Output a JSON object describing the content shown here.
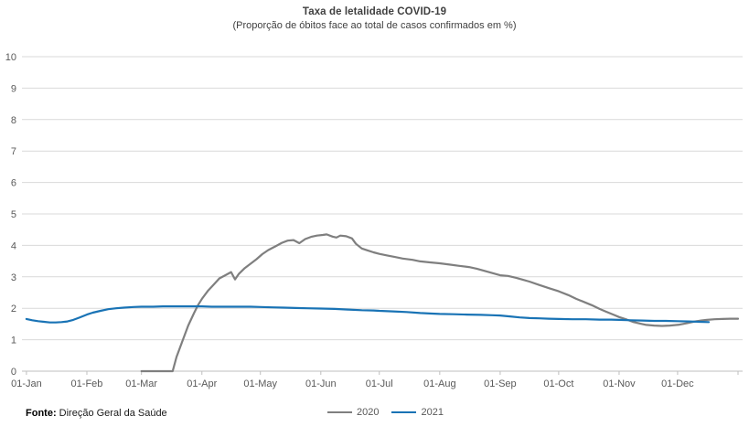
{
  "title": "Taxa de letalidade COVID-19",
  "subtitle": "(Proporção de óbitos face ao total de casos confirmados em %)",
  "source": {
    "label": "Fonte:",
    "text": " Direção Geral da Saúde"
  },
  "legend": {
    "items": [
      {
        "label": "2020"
      },
      {
        "label": "2021"
      }
    ]
  },
  "colors": {
    "series_2020": "#7f7f7f",
    "series_2021": "#1973b5",
    "gridline": "#d9d9d9",
    "axis": "#bfbfbf",
    "axis_text": "#595959",
    "title_text": "#404040"
  },
  "chart_data": {
    "type": "line",
    "title": "Taxa de letalidade COVID-19",
    "subtitle": "(Proporção de óbitos face ao total de casos confirmados em %)",
    "ylabel": "",
    "xlabel": "",
    "ylim": [
      0,
      10
    ],
    "y_ticks": [
      0,
      1,
      2,
      3,
      4,
      5,
      6,
      7,
      8,
      9,
      10
    ],
    "grid": true,
    "legend_position": "bottom-center",
    "x_unit": "day-of-year (0 = 01-Jan, 365 = 31-Dec)",
    "x_ticks": [
      {
        "label": "01-Jan",
        "day": 0
      },
      {
        "label": "01-Feb",
        "day": 31
      },
      {
        "label": "01-Mar",
        "day": 59
      },
      {
        "label": "01-Apr",
        "day": 90
      },
      {
        "label": "01-May",
        "day": 120
      },
      {
        "label": "01-Jun",
        "day": 151
      },
      {
        "label": "01-Jul",
        "day": 181
      },
      {
        "label": "01-Aug",
        "day": 212
      },
      {
        "label": "01-Sep",
        "day": 243
      },
      {
        "label": "01-Oct",
        "day": 273
      },
      {
        "label": "01-Nov",
        "day": 304
      },
      {
        "label": "01-Dec",
        "day": 334
      }
    ],
    "series": [
      {
        "name": "2020",
        "color": "#7f7f7f",
        "stroke_width": 2.2,
        "points": [
          [
            59,
            0
          ],
          [
            63,
            0
          ],
          [
            67,
            0
          ],
          [
            71,
            0
          ],
          [
            75,
            0
          ],
          [
            77,
            0.45
          ],
          [
            80,
            0.95
          ],
          [
            83,
            1.45
          ],
          [
            86,
            1.85
          ],
          [
            88,
            2.1
          ],
          [
            90,
            2.3
          ],
          [
            93,
            2.55
          ],
          [
            96,
            2.75
          ],
          [
            99,
            2.95
          ],
          [
            102,
            3.05
          ],
          [
            105,
            3.15
          ],
          [
            107,
            2.92
          ],
          [
            109,
            3.1
          ],
          [
            112,
            3.28
          ],
          [
            115,
            3.42
          ],
          [
            118,
            3.56
          ],
          [
            121,
            3.72
          ],
          [
            124,
            3.85
          ],
          [
            128,
            3.98
          ],
          [
            131,
            4.08
          ],
          [
            134,
            4.15
          ],
          [
            137,
            4.17
          ],
          [
            140,
            4.07
          ],
          [
            143,
            4.2
          ],
          [
            146,
            4.27
          ],
          [
            149,
            4.31
          ],
          [
            152,
            4.33
          ],
          [
            154,
            4.35
          ],
          [
            157,
            4.28
          ],
          [
            159,
            4.25
          ],
          [
            161,
            4.31
          ],
          [
            164,
            4.29
          ],
          [
            167,
            4.22
          ],
          [
            169,
            4.05
          ],
          [
            172,
            3.9
          ],
          [
            175,
            3.84
          ],
          [
            178,
            3.78
          ],
          [
            181,
            3.73
          ],
          [
            185,
            3.68
          ],
          [
            189,
            3.63
          ],
          [
            193,
            3.58
          ],
          [
            198,
            3.54
          ],
          [
            202,
            3.49
          ],
          [
            207,
            3.46
          ],
          [
            212,
            3.43
          ],
          [
            217,
            3.39
          ],
          [
            222,
            3.35
          ],
          [
            227,
            3.31
          ],
          [
            231,
            3.26
          ],
          [
            235,
            3.19
          ],
          [
            239,
            3.12
          ],
          [
            243,
            3.05
          ],
          [
            247,
            3.03
          ],
          [
            251,
            2.97
          ],
          [
            255,
            2.9
          ],
          [
            258,
            2.85
          ],
          [
            263,
            2.74
          ],
          [
            268,
            2.64
          ],
          [
            273,
            2.54
          ],
          [
            278,
            2.42
          ],
          [
            282,
            2.3
          ],
          [
            286,
            2.2
          ],
          [
            290,
            2.1
          ],
          [
            294,
            1.98
          ],
          [
            297,
            1.9
          ],
          [
            301,
            1.8
          ],
          [
            304,
            1.72
          ],
          [
            308,
            1.64
          ],
          [
            311,
            1.57
          ],
          [
            315,
            1.51
          ],
          [
            318,
            1.47
          ],
          [
            322,
            1.45
          ],
          [
            326,
            1.44
          ],
          [
            330,
            1.45
          ],
          [
            335,
            1.48
          ],
          [
            339,
            1.53
          ],
          [
            342,
            1.57
          ],
          [
            346,
            1.61
          ],
          [
            349,
            1.63
          ],
          [
            353,
            1.65
          ],
          [
            357,
            1.66
          ],
          [
            361,
            1.67
          ],
          [
            365,
            1.67
          ]
        ]
      },
      {
        "name": "2021",
        "color": "#1973b5",
        "stroke_width": 2.2,
        "points": [
          [
            0,
            1.66
          ],
          [
            3,
            1.62
          ],
          [
            6,
            1.59
          ],
          [
            9,
            1.57
          ],
          [
            12,
            1.55
          ],
          [
            15,
            1.55
          ],
          [
            18,
            1.56
          ],
          [
            21,
            1.58
          ],
          [
            24,
            1.63
          ],
          [
            27,
            1.7
          ],
          [
            31,
            1.8
          ],
          [
            34,
            1.86
          ],
          [
            38,
            1.92
          ],
          [
            42,
            1.97
          ],
          [
            46,
            2.0
          ],
          [
            50,
            2.02
          ],
          [
            55,
            2.04
          ],
          [
            59,
            2.05
          ],
          [
            65,
            2.05
          ],
          [
            70,
            2.06
          ],
          [
            75,
            2.06
          ],
          [
            80,
            2.06
          ],
          [
            85,
            2.06
          ],
          [
            90,
            2.06
          ],
          [
            95,
            2.05
          ],
          [
            100,
            2.05
          ],
          [
            105,
            2.05
          ],
          [
            110,
            2.05
          ],
          [
            115,
            2.05
          ],
          [
            120,
            2.04
          ],
          [
            126,
            2.03
          ],
          [
            132,
            2.02
          ],
          [
            138,
            2.01
          ],
          [
            144,
            2.0
          ],
          [
            151,
            1.99
          ],
          [
            158,
            1.98
          ],
          [
            165,
            1.96
          ],
          [
            172,
            1.94
          ],
          [
            178,
            1.93
          ],
          [
            181,
            1.92
          ],
          [
            188,
            1.9
          ],
          [
            195,
            1.88
          ],
          [
            202,
            1.85
          ],
          [
            208,
            1.83
          ],
          [
            212,
            1.82
          ],
          [
            219,
            1.81
          ],
          [
            226,
            1.8
          ],
          [
            233,
            1.79
          ],
          [
            239,
            1.78
          ],
          [
            243,
            1.77
          ],
          [
            248,
            1.74
          ],
          [
            253,
            1.71
          ],
          [
            258,
            1.69
          ],
          [
            263,
            1.68
          ],
          [
            268,
            1.67
          ],
          [
            273,
            1.66
          ],
          [
            280,
            1.65
          ],
          [
            287,
            1.65
          ],
          [
            294,
            1.64
          ],
          [
            300,
            1.64
          ],
          [
            304,
            1.63
          ],
          [
            310,
            1.62
          ],
          [
            316,
            1.61
          ],
          [
            322,
            1.6
          ],
          [
            328,
            1.6
          ],
          [
            334,
            1.59
          ],
          [
            340,
            1.58
          ],
          [
            345,
            1.57
          ],
          [
            350,
            1.56
          ]
        ]
      }
    ]
  }
}
